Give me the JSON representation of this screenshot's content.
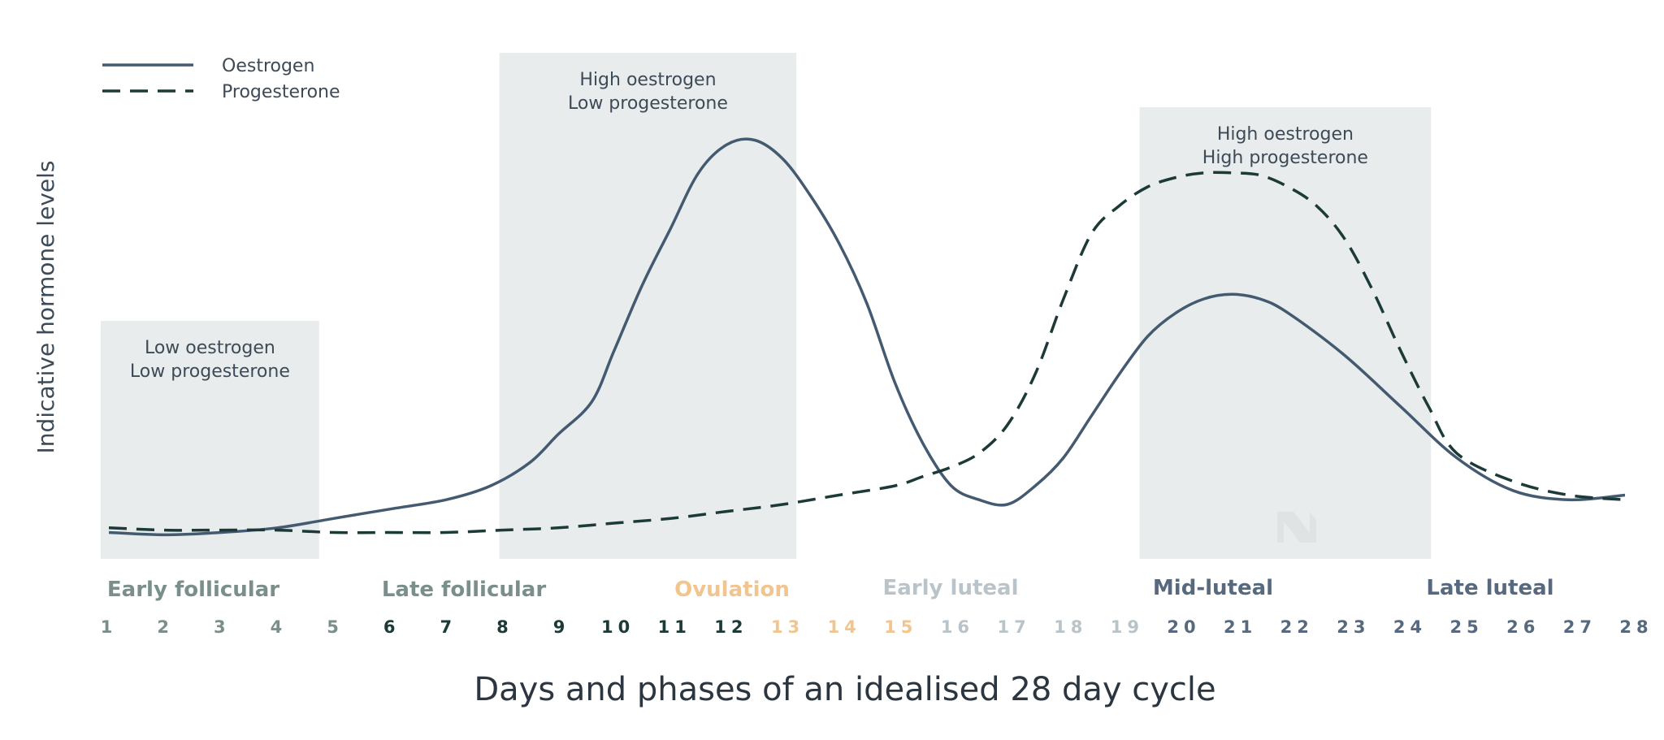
{
  "colors": {
    "oestrogen": "#435a70",
    "progesterone": "#1c3a38",
    "box": "#e9ecec",
    "phase_follicular": "#7a8f8c",
    "phase_ovulation": "#f2c48e",
    "phase_early_luteal": "#b9c3ca",
    "phase_luteal": "#56697f"
  },
  "chart_data": {
    "type": "line",
    "xlabel": "Days and phases of an idealised 28 day cycle",
    "ylabel": "Indicative hormone levels",
    "xlim": [
      1,
      28
    ],
    "ylim": [
      0,
      100
    ],
    "grid": false,
    "legend_placement": "top-left",
    "legend": [
      {
        "name": "Oestrogen",
        "style": "solid"
      },
      {
        "name": "Progesterone",
        "style": "dashed"
      }
    ],
    "series": [
      {
        "name": "Oestrogen",
        "style": "solid",
        "x": [
          1,
          2,
          3,
          4,
          5,
          6,
          7,
          7.8,
          8.5,
          9,
          9.6,
          10,
          10.5,
          11,
          11.5,
          12,
          12.5,
          13,
          13.5,
          14,
          14.5,
          15,
          15.5,
          16,
          16.5,
          17,
          17.5,
          18,
          18.5,
          19,
          19.5,
          20,
          20.5,
          21,
          21.5,
          22,
          23,
          24,
          25,
          26,
          27,
          28
        ],
        "values": [
          6,
          5.5,
          6,
          7,
          9,
          11,
          13,
          16,
          21,
          27,
          34,
          45,
          59,
          71,
          83,
          89,
          90,
          86,
          78,
          68,
          55,
          38,
          25,
          16,
          13,
          12,
          16,
          22,
          31,
          40,
          48,
          53,
          56,
          57,
          56,
          53,
          44,
          33,
          22,
          15,
          13,
          14
        ]
      },
      {
        "name": "Progesterone",
        "style": "dashed",
        "x": [
          1,
          2,
          3,
          4,
          5,
          6,
          7,
          8,
          9,
          10,
          11,
          12,
          13,
          14,
          15,
          15.5,
          16,
          16.5,
          17,
          17.5,
          18,
          18.5,
          19,
          19.5,
          20,
          20.5,
          21,
          21.5,
          22,
          22.5,
          23,
          23.5,
          24,
          24.5,
          25,
          26,
          27,
          28
        ],
        "values": [
          7,
          6.5,
          6.5,
          6.5,
          6,
          6,
          6,
          6.5,
          7,
          8,
          9,
          10.5,
          12,
          14,
          16,
          18,
          20,
          23,
          29,
          40,
          56,
          70,
          76,
          80,
          82,
          83,
          83,
          82.5,
          80,
          76,
          69,
          58,
          45,
          33,
          23,
          17,
          14,
          13
        ]
      }
    ],
    "annotations": [
      {
        "lines": [
          "Low oestrogen",
          "Low progesterone"
        ],
        "x_range": [
          1,
          4.6
        ]
      },
      {
        "lines": [
          "High oestrogen",
          "Low progesterone"
        ],
        "x_range": [
          8.1,
          13.1
        ]
      },
      {
        "lines": [
          "High oestrogen",
          "High progesterone"
        ],
        "x_range": [
          19.5,
          24.4
        ]
      }
    ],
    "phases": [
      {
        "label": "Early follicular",
        "days": [
          1,
          5
        ],
        "color_key": "phase_follicular"
      },
      {
        "label": "Late follicular",
        "days": [
          6,
          12
        ],
        "color_key": "phase_follicular"
      },
      {
        "label": "Ovulation",
        "days": [
          13,
          15
        ],
        "color_key": "phase_ovulation"
      },
      {
        "label": "Early luteal",
        "days": [
          16,
          19
        ],
        "color_key": "phase_early_luteal"
      },
      {
        "label": "Mid-luteal",
        "days": [
          20,
          23
        ],
        "color_key": "phase_luteal"
      },
      {
        "label": "Late luteal",
        "days": [
          24,
          28
        ],
        "color_key": "phase_luteal"
      }
    ],
    "days": [
      "1",
      "2",
      "3",
      "4",
      "5",
      "6",
      "7",
      "8",
      "9",
      "10",
      "11",
      "12",
      "13",
      "14",
      "15",
      "16",
      "17",
      "18",
      "19",
      "20",
      "21",
      "22",
      "23",
      "24",
      "25",
      "26",
      "27",
      "28"
    ],
    "day_colors": [
      "phase_follicular",
      "phase_follicular",
      "phase_follicular",
      "phase_follicular",
      "phase_follicular",
      "progesterone",
      "progesterone",
      "progesterone",
      "progesterone",
      "progesterone",
      "progesterone",
      "progesterone",
      "phase_ovulation",
      "phase_ovulation",
      "phase_ovulation",
      "phase_early_luteal",
      "phase_early_luteal",
      "phase_early_luteal",
      "phase_early_luteal",
      "phase_luteal",
      "phase_luteal",
      "phase_luteal",
      "phase_luteal",
      "phase_luteal",
      "phase_luteal",
      "phase_luteal",
      "phase_luteal",
      "phase_luteal"
    ]
  }
}
